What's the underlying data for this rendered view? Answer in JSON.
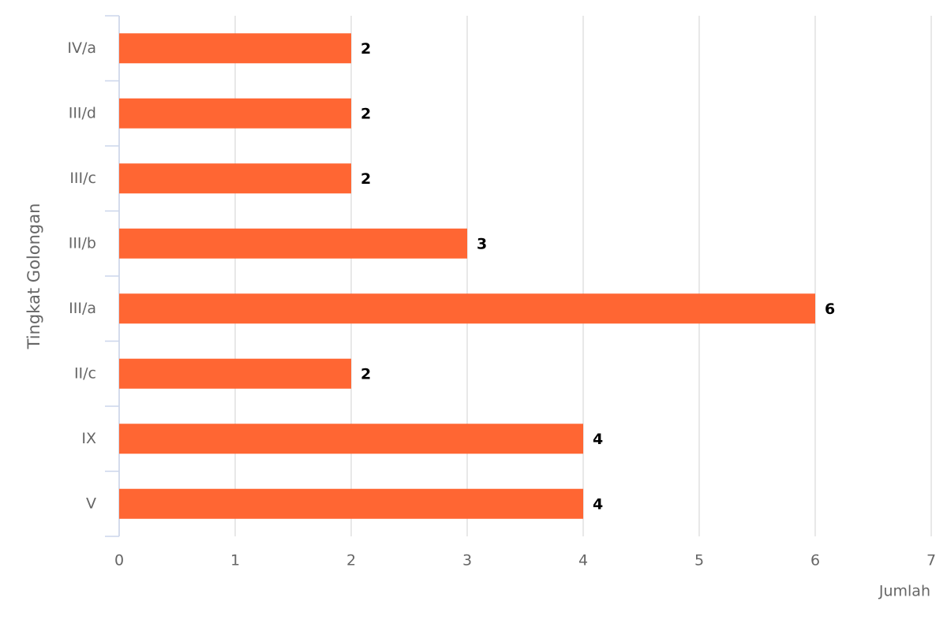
{
  "chart_data": {
    "type": "bar",
    "categories": [
      "IV/a",
      "III/d",
      "III/c",
      "III/b",
      "III/a",
      "II/c",
      "IX",
      "V"
    ],
    "values": [
      2,
      2,
      2,
      3,
      6,
      2,
      4,
      4
    ],
    "color": "#ff6633",
    "x_label": "Jumlah",
    "y_label": "Tingkat Golongan",
    "xlim": [
      0,
      7
    ],
    "xticks": [
      0,
      1,
      2,
      3,
      4,
      5,
      6,
      7
    ],
    "grid": true
  }
}
